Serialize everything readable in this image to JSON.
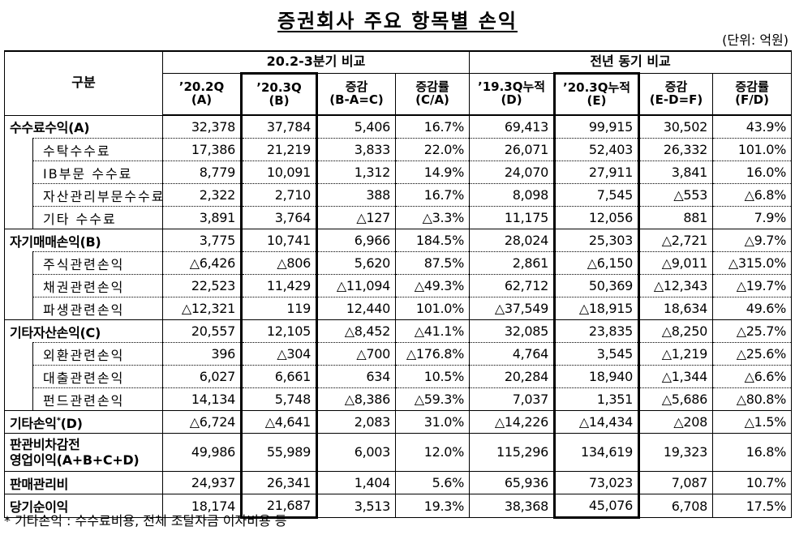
{
  "title": "증권회사 주요 항목별 손익",
  "unit": "(단위: 억원)",
  "table": {
    "corner": "구분",
    "groups": [
      "20.2-3분기 비교",
      "전년 동기 비교"
    ],
    "columns": [
      [
        "’20.2Q",
        "(A)"
      ],
      [
        "’20.3Q",
        "(B)"
      ],
      [
        "증감",
        "(B-A=C)"
      ],
      [
        "증감률",
        "(C/A)"
      ],
      [
        "’19.3Q누적",
        "(D)"
      ],
      [
        "’20.3Q누적",
        "(E)"
      ],
      [
        "증감",
        "(E-D=F)"
      ],
      [
        "증감률",
        "(F/D)"
      ]
    ],
    "sections": [
      {
        "label": "수수료수익(A)",
        "cells": [
          "32,378",
          "37,784",
          "5,406",
          "16.7%",
          "69,413",
          "99,915",
          "30,502",
          "43.9%"
        ],
        "items": [
          {
            "label": "수탁수수료",
            "cells": [
              "17,386",
              "21,219",
              "3,833",
              "22.0%",
              "26,071",
              "52,403",
              "26,332",
              "101.0%"
            ]
          },
          {
            "label": "IB부문 수수료",
            "cells": [
              "8,779",
              "10,091",
              "1,312",
              "14.9%",
              "24,070",
              "27,911",
              "3,841",
              "16.0%"
            ]
          },
          {
            "label": "자산관리부문수수료",
            "cells": [
              "2,322",
              "2,710",
              "388",
              "16.7%",
              "8,098",
              "7,545",
              "△553",
              "△6.8%"
            ]
          },
          {
            "label": "기타 수수료",
            "cells": [
              "3,891",
              "3,764",
              "△127",
              "△3.3%",
              "11,175",
              "12,056",
              "881",
              "7.9%"
            ]
          }
        ]
      },
      {
        "label": "자기매매손익(B)",
        "cells": [
          "3,775",
          "10,741",
          "6,966",
          "184.5%",
          "28,024",
          "25,303",
          "△2,721",
          "△9.7%"
        ],
        "items": [
          {
            "label": "주식관련손익",
            "cells": [
              "△6,426",
              "△806",
              "5,620",
              "87.5%",
              "2,861",
              "△6,150",
              "△9,011",
              "△315.0%"
            ]
          },
          {
            "label": "채권관련손익",
            "cells": [
              "22,523",
              "11,429",
              "△11,094",
              "△49.3%",
              "62,712",
              "50,369",
              "△12,343",
              "△19.7%"
            ]
          },
          {
            "label": "파생관련손익",
            "cells": [
              "△12,321",
              "119",
              "12,440",
              "101.0%",
              "△37,549",
              "△18,915",
              "18,634",
              "49.6%"
            ]
          }
        ]
      },
      {
        "label": "기타자산손익(C)",
        "cells": [
          "20,557",
          "12,105",
          "△8,452",
          "△41.1%",
          "32,085",
          "23,835",
          "△8,250",
          "△25.7%"
        ],
        "items": [
          {
            "label": "외환관련손익",
            "cells": [
              "396",
              "△304",
              "△700",
              "△176.8%",
              "4,764",
              "3,545",
              "△1,219",
              "△25.6%"
            ]
          },
          {
            "label": "대출관련손익",
            "cells": [
              "6,027",
              "6,661",
              "634",
              "10.5%",
              "20,284",
              "18,940",
              "△1,344",
              "△6.6%"
            ]
          },
          {
            "label": "펀드관련손익",
            "cells": [
              "14,134",
              "5,748",
              "△8,386",
              "△59.3%",
              "7,037",
              "1,351",
              "△5,686",
              "△80.8%"
            ]
          }
        ]
      },
      {
        "label": "기타손익",
        "label_mark": "*",
        "label_suffix": "(D)",
        "cells": [
          "△6,724",
          "△4,641",
          "2,083",
          "31.0%",
          "△14,226",
          "△14,434",
          "△208",
          "△1.5%"
        ]
      },
      {
        "label": [
          "판관비차감전",
          "영업이익(A+B+C+D)"
        ],
        "cells": [
          "49,986",
          "55,989",
          "6,003",
          "12.0%",
          "115,296",
          "134,619",
          "19,323",
          "16.8%"
        ]
      },
      {
        "label": "판매관리비",
        "cells": [
          "24,937",
          "26,341",
          "1,404",
          "5.6%",
          "65,936",
          "73,023",
          "7,087",
          "10.7%"
        ]
      },
      {
        "label": "당기순이익",
        "cells": [
          "18,174",
          "21,687",
          "3,513",
          "19.3%",
          "38,368",
          "45,076",
          "6,708",
          "17.5%"
        ]
      }
    ]
  },
  "footnote": "* 기타손익 : 수수료비용, 전체 조달자금 이자비용 등"
}
